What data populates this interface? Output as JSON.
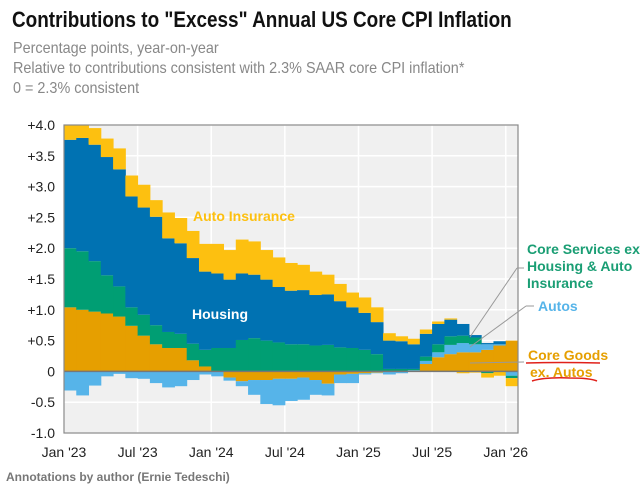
{
  "header": {
    "title": "Contributions to \"Excess\" Annual US Core CPI Inflation",
    "subtitle_1": "Percentage points, year-on-year",
    "subtitle_2": "Relative to contributions consistent with 2.3% SAAR core CPI inflation*",
    "subtitle_3": "0 = 2.3% consistent"
  },
  "footer": "Annotations by author (Ernie Tedeschi)",
  "chart_data": {
    "type": "bar",
    "stacked": true,
    "title": "Contributions to \"Excess\" Annual US Core CPI Inflation",
    "xlabel": "",
    "ylabel": "Percentage points, year-on-year",
    "ylim": [
      -1.0,
      4.0
    ],
    "grid": true,
    "y_ticks": [
      "+4.0",
      "+3.5",
      "+3.0",
      "+2.5",
      "+2.0",
      "+1.5",
      "+1.0",
      "+0.5",
      "0",
      "-0.5",
      "-1.0"
    ],
    "y_tick_values": [
      4,
      3.5,
      3,
      2.5,
      2,
      1.5,
      1,
      0.5,
      0,
      -0.5,
      -1
    ],
    "x_ticks": [
      "Jan '23",
      "Jul '23",
      "Jan '24",
      "Jul '24",
      "Jan '25",
      "Jul '25",
      "Jan '26"
    ],
    "x_tick_index": [
      0,
      6,
      12,
      18,
      24,
      30,
      36
    ],
    "months": [
      "2023-01",
      "2023-02",
      "2023-03",
      "2023-04",
      "2023-05",
      "2023-06",
      "2023-07",
      "2023-08",
      "2023-09",
      "2023-10",
      "2023-11",
      "2023-12",
      "2024-01",
      "2024-02",
      "2024-03",
      "2024-04",
      "2024-05",
      "2024-06",
      "2024-07",
      "2024-08",
      "2024-09",
      "2024-10",
      "2024-11",
      "2024-12",
      "2025-01",
      "2025-02",
      "2025-03",
      "2025-04",
      "2025-05",
      "2025-06",
      "2025-07",
      "2025-08",
      "2025-09",
      "2025-10",
      "2025-11",
      "2025-12",
      "2026-01"
    ],
    "series": [
      {
        "name": "Core Goods ex. Autos",
        "color": "#e69f00",
        "values": [
          1.04,
          1.0,
          0.97,
          0.94,
          0.89,
          0.74,
          0.58,
          0.44,
          0.38,
          0.38,
          0.18,
          0.08,
          0.0,
          -0.1,
          -0.16,
          -0.14,
          -0.14,
          -0.12,
          -0.12,
          -0.1,
          -0.14,
          -0.2,
          -0.05,
          -0.04,
          -0.03,
          -0.02,
          0.0,
          0.0,
          0.0,
          0.12,
          0.23,
          0.28,
          0.31,
          0.31,
          0.35,
          0.42,
          0.5
        ]
      },
      {
        "name": "Autos",
        "color": "#56b4e9",
        "values": [
          -0.31,
          -0.39,
          -0.23,
          -0.08,
          -0.04,
          -0.11,
          -0.12,
          -0.19,
          -0.26,
          -0.24,
          -0.14,
          -0.05,
          -0.08,
          -0.05,
          -0.08,
          -0.24,
          -0.39,
          -0.43,
          -0.36,
          -0.36,
          -0.24,
          -0.19,
          -0.14,
          -0.15,
          -0.02,
          -0.01,
          -0.05,
          -0.03,
          0.02,
          0.05,
          0.08,
          0.15,
          0.15,
          0.13,
          0.09,
          0.02,
          -0.07
        ]
      },
      {
        "name": "Core Services ex. Housing & Auto Insurance",
        "color": "#009e73",
        "values": [
          0.96,
          0.95,
          0.82,
          0.62,
          0.49,
          0.3,
          0.34,
          0.31,
          0.26,
          0.23,
          0.27,
          0.27,
          0.38,
          0.38,
          0.51,
          0.54,
          0.5,
          0.47,
          0.44,
          0.44,
          0.42,
          0.43,
          0.39,
          0.38,
          0.35,
          0.28,
          0.04,
          0.04,
          0.02,
          0.07,
          0.13,
          0.14,
          0.12,
          0.11,
          -0.03,
          0.0,
          -0.04
        ]
      },
      {
        "name": "Housing",
        "color": "#0072b2",
        "values": [
          1.76,
          1.84,
          1.89,
          1.92,
          1.9,
          1.8,
          1.74,
          1.76,
          1.52,
          1.47,
          1.39,
          1.27,
          1.21,
          1.11,
          1.08,
          1.03,
          0.99,
          0.9,
          0.87,
          0.88,
          0.82,
          0.82,
          0.75,
          0.66,
          0.6,
          0.52,
          0.46,
          0.45,
          0.4,
          0.37,
          0.33,
          0.27,
          0.19,
          0.04,
          0.02,
          0.05,
          0.0
        ]
      },
      {
        "name": "Auto Insurance",
        "color": "#fdc010",
        "values": [
          0.24,
          0.21,
          0.27,
          0.3,
          0.34,
          0.34,
          0.37,
          0.27,
          0.42,
          0.41,
          0.44,
          0.45,
          0.48,
          0.48,
          0.55,
          0.54,
          0.48,
          0.48,
          0.45,
          0.41,
          0.38,
          0.32,
          0.28,
          0.24,
          0.25,
          0.24,
          0.12,
          0.08,
          0.09,
          0.07,
          0.04,
          0.02,
          -0.03,
          -0.02,
          -0.07,
          -0.07,
          -0.13
        ]
      }
    ],
    "annotations": {
      "auto_insurance": "Auto Insurance",
      "housing": "Housing",
      "services_1": "Core Services ex.",
      "services_2": "Housing & Auto",
      "services_3": "Insurance",
      "autos": "Autos",
      "goods_1": "Core Goods",
      "goods_2": "ex. Autos"
    }
  }
}
